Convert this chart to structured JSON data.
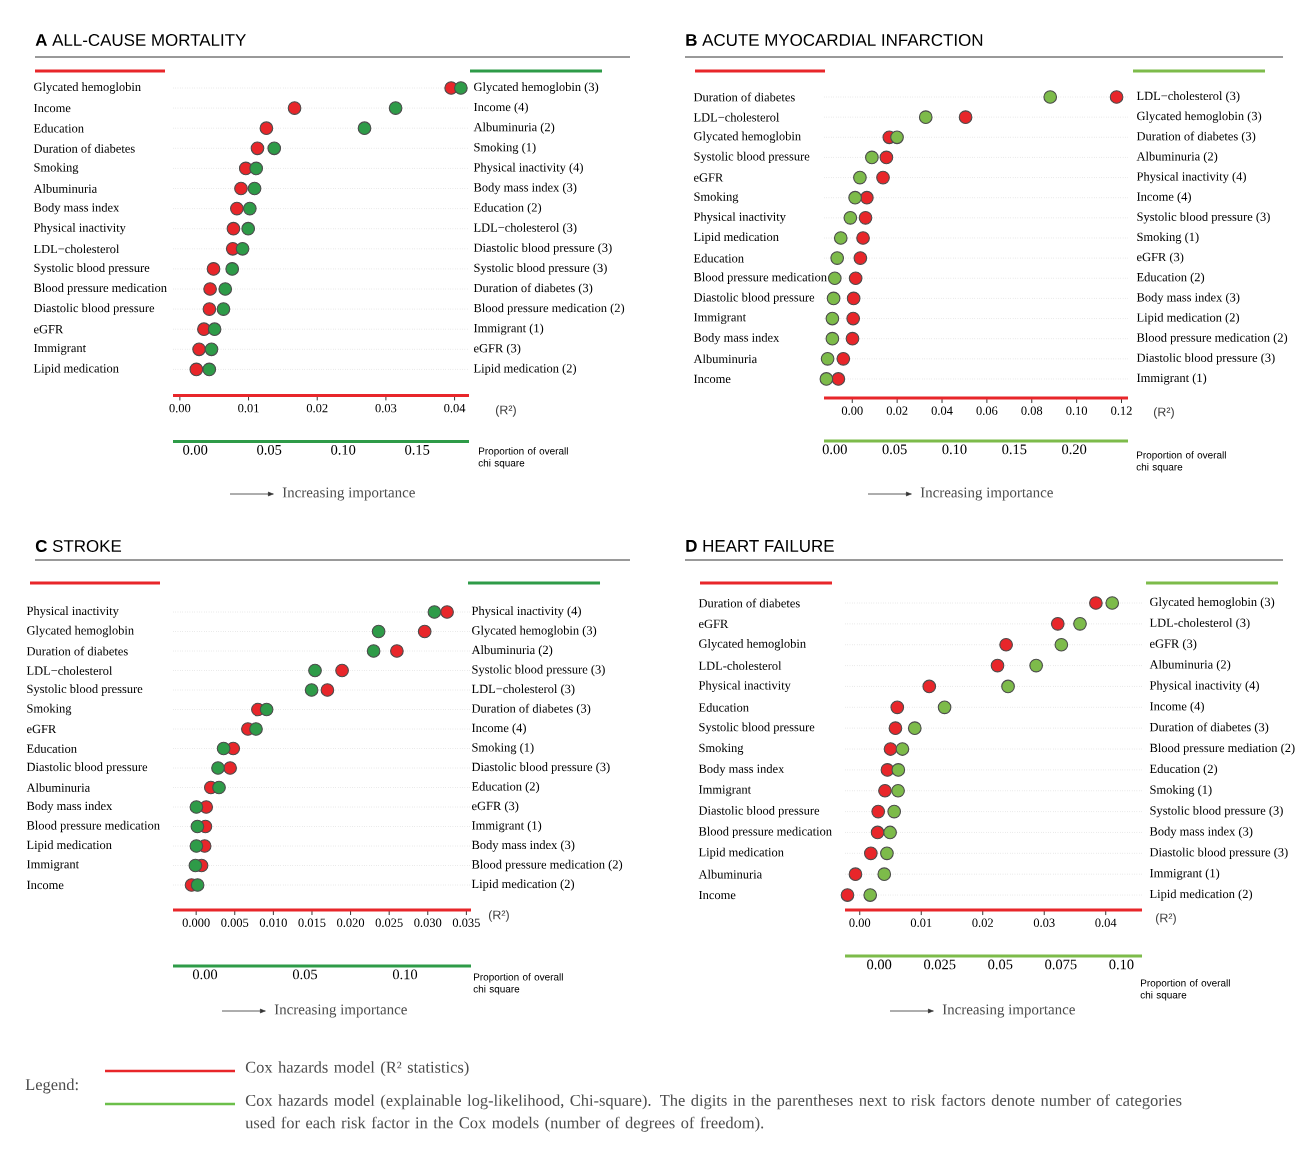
{
  "chart_data": [
    {
      "type": "scatter",
      "orientation": "horizontal",
      "title": "**A** ALL-CAUSE MORTALITY",
      "xlabel": "(R²)",
      "x2label": "Proportion of overall chi square",
      "annotations": [
        "Increasing importance"
      ],
      "marker": "circle",
      "grid": "y",
      "categories": [
        "Glycated hemoglobin",
        "Income",
        "Education",
        "Duration of diabetes",
        "Smoking",
        "Albuminuria",
        "Body mass index",
        "Physical inactivity",
        "LDL−cholesterol",
        "Systolic blood pressure",
        "Blood pressure medication",
        "Diastolic blood pressure",
        "eGFR",
        "Immigrant",
        "Lipid medication"
      ],
      "y2_categories": [
        "Glycated hemoglobin (3)",
        "Income (4)",
        "Albuminuria (2)",
        "Smoking (1)",
        "Physical inactivity (4)",
        "Body mass index (3)",
        "Education (2)",
        "LDL−cholesterol (3)",
        "Diastolic blood pressure (3)",
        "Systolic blood pressure (3)",
        "Duration of diabetes (3)",
        "Blood pressure medication (2)",
        "Immigrant (1)",
        "eGFR (3)",
        "Lipid medication (2)"
      ],
      "xlim": [
        -0.001,
        0.0421
      ],
      "xticks": [
        {
          "value": 0,
          "label": "0.00"
        },
        {
          "value": 0.01,
          "label": "0.01"
        },
        {
          "value": 0.02,
          "label": "0.02"
        },
        {
          "value": 0.03,
          "label": "0.03"
        },
        {
          "value": 0.04,
          "label": "0.04"
        }
      ],
      "x2lim": [
        -0.015,
        0.185
      ],
      "x2ticks": [
        {
          "value": 0,
          "label": "0.00"
        },
        {
          "value": 0.05,
          "label": "0.05"
        },
        {
          "value": 0.1,
          "label": "0.10"
        },
        {
          "value": 0.15,
          "label": "0.15"
        }
      ],
      "series": [
        {
          "color": "#e8262a",
          "values": [
            0.0395,
            0.0167,
            0.0126,
            0.0113,
            0.0096,
            0.0089,
            0.0083,
            0.0078,
            0.0077,
            0.0049,
            0.0044,
            0.0043,
            0.0035,
            0.0028,
            0.0024
          ]
        },
        {
          "color": "#2e9b48",
          "axis": "x2",
          "values": [
            0.1795,
            0.1354,
            0.1144,
            0.0534,
            0.0412,
            0.0401,
            0.0369,
            0.0358,
            0.032,
            0.025,
            0.0203,
            0.0191,
            0.0131,
            0.011,
            0.0095
          ]
        }
      ]
    },
    {
      "type": "scatter",
      "orientation": "horizontal",
      "title": "**B** ACUTE MYOCARDIAL INFARCTION",
      "xlabel": "(R²)",
      "x2label": "Proportion of overall chi square",
      "annotations": [
        "Increasing importance"
      ],
      "marker": "circle",
      "grid": "y",
      "categories": [
        "Duration of diabetes",
        "LDL−cholesterol",
        "Glycated hemoglobin",
        "Systolic blood pressure",
        "eGFR",
        "Smoking",
        "Physical inactivity",
        "Lipid medication",
        "Education",
        "Blood pressure medication",
        "Diastolic blood pressure",
        "Immigrant",
        "Body mass index",
        "Albuminuria",
        "Income"
      ],
      "y2_categories": [
        "LDL−cholesterol (3)",
        "Glycated hemoglobin (3)",
        "Duration of diabetes (3)",
        "Albuminuria (2)",
        "Physical inactivity (4)",
        "Income (4)",
        "Systolic blood pressure (3)",
        "Smoking (1)",
        "eGFR (3)",
        "Education (2)",
        "Body mass index (3)",
        "Lipid medication (2)",
        "Blood pressure medication (2)",
        "Diastolic blood pressure (3)",
        "Immigrant (1)"
      ],
      "xlim": [
        -0.0126,
        0.1229
      ],
      "xticks": [
        {
          "value": 0,
          "label": "0.00"
        },
        {
          "value": 0.02,
          "label": "0.02"
        },
        {
          "value": 0.04,
          "label": "0.04"
        },
        {
          "value": 0.06,
          "label": "0.06"
        },
        {
          "value": 0.08,
          "label": "0.08"
        },
        {
          "value": 0.1,
          "label": "0.10"
        },
        {
          "value": 0.12,
          "label": "0.12"
        }
      ],
      "x2lim": [
        -0.009,
        0.245
      ],
      "x2ticks": [
        {
          "value": 0,
          "label": "0.00"
        },
        {
          "value": 0.05,
          "label": "0.05"
        },
        {
          "value": 0.1,
          "label": "0.10"
        },
        {
          "value": 0.15,
          "label": "0.15"
        },
        {
          "value": 0.2,
          "label": "0.20"
        }
      ],
      "series": [
        {
          "color": "#e8262a",
          "values": [
            0.1178,
            0.0505,
            0.0165,
            0.0152,
            0.0137,
            0.0065,
            0.0059,
            0.0048,
            0.0036,
            0.0015,
            0.0006,
            0.0004,
            0.0001,
            -0.004,
            -0.0062
          ]
        },
        {
          "color": "#7dbb4a",
          "axis": "x2",
          "values": [
            0.18,
            0.076,
            0.052,
            0.031,
            0.021,
            0.017,
            0.013,
            0.005,
            0.002,
            0.0,
            -0.001,
            -0.002,
            -0.002,
            -0.006,
            -0.007
          ]
        }
      ]
    },
    {
      "type": "scatter",
      "orientation": "horizontal",
      "title": "**C** STROKE",
      "xlabel": "(R²)",
      "x2label": "Proportion of overall chi square",
      "annotations": [
        "Increasing importance"
      ],
      "marker": "circle",
      "grid": "y",
      "categories": [
        "Physical inactivity",
        "Glycated hemoglobin",
        "Duration of diabetes",
        "LDL−cholesterol",
        "Systolic blood pressure",
        "Smoking",
        "eGFR",
        "Education",
        "Diastolic blood pressure",
        "Albuminuria",
        "Body mass index",
        "Blood pressure medication",
        "Lipid medication",
        "Immigrant",
        "Income"
      ],
      "y2_categories": [
        "Physical inactivity (4)",
        "Glycated hemoglobin (3)",
        "Albuminuria (2)",
        "Systolic blood pressure (3)",
        "LDL−cholesterol (3)",
        "Duration of diabetes (3)",
        "Income (4)",
        "Smoking (1)",
        "Diastolic blood pressure (3)",
        "Education (2)",
        "eGFR (3)",
        "Immigrant (1)",
        "Body mass index (3)",
        "Blood pressure medication (2)",
        "Lipid medication (2)"
      ],
      "xlim": [
        -0.003,
        0.0356
      ],
      "xticks": [
        {
          "value": 0,
          "label": "0.000"
        },
        {
          "value": 0.005,
          "label": "0.005"
        },
        {
          "value": 0.01,
          "label": "0.010"
        },
        {
          "value": 0.015,
          "label": "0.015"
        },
        {
          "value": 0.02,
          "label": "0.020"
        },
        {
          "value": 0.025,
          "label": "0.025"
        },
        {
          "value": 0.03,
          "label": "0.030"
        },
        {
          "value": 0.035,
          "label": "0.035"
        }
      ],
      "x2lim": [
        -0.016,
        0.133
      ],
      "x2ticks": [
        {
          "value": 0,
          "label": "0.00"
        },
        {
          "value": 0.05,
          "label": "0.05"
        },
        {
          "value": 0.1,
          "label": "0.10"
        }
      ],
      "series": [
        {
          "color": "#e8262a",
          "values": [
            0.0325,
            0.0296,
            0.026,
            0.0189,
            0.017,
            0.008,
            0.0067,
            0.0048,
            0.0044,
            0.0019,
            0.0013,
            0.0012,
            0.0011,
            0.0007,
            -0.0006
          ]
        },
        {
          "color": "#2e9b48",
          "axis": "x2",
          "values": [
            0.1147,
            0.0868,
            0.0843,
            0.055,
            0.0533,
            0.0308,
            0.0255,
            0.0093,
            0.0065,
            0.007,
            -0.0043,
            -0.0038,
            -0.0043,
            -0.0048,
            -0.0037
          ]
        }
      ]
    },
    {
      "type": "scatter",
      "orientation": "horizontal",
      "title": "**D** HEART FAILURE",
      "xlabel": "(R²)",
      "x2label": "Proportion of overall chi square",
      "annotations": [
        "Increasing importance"
      ],
      "marker": "circle",
      "grid": "y",
      "categories": [
        "Duration of diabetes",
        "eGFR",
        "Glycated hemoglobin",
        "LDL-cholesterol",
        "Physical inactivity",
        "Education",
        "Systolic blood pressure",
        "Smoking",
        "Body mass index",
        "Immigrant",
        "Diastolic blood pressure",
        "Blood pressure medication",
        "Lipid medication",
        "Albuminuria",
        "Income"
      ],
      "y2_categories": [
        "Glycated hemoglobin (3)",
        "LDL-cholesterol (3)",
        "eGFR (3)",
        "Albuminuria (2)",
        "Physical inactivity (4)",
        "Income (4)",
        "Duration of diabetes (3)",
        "Blood pressure mediation (2)",
        "Education (2)",
        "Smoking (1)",
        "Systolic blood pressure (3)",
        "Body mass index (3)",
        "Diastolic blood pressure (3)",
        "Immigrant (1)",
        "Lipid medication (2)"
      ],
      "xlim": [
        -0.0024,
        0.0459
      ],
      "xticks": [
        {
          "value": 0,
          "label": "0.00"
        },
        {
          "value": 0.01,
          "label": "0.01"
        },
        {
          "value": 0.02,
          "label": "0.02"
        },
        {
          "value": 0.03,
          "label": "0.03"
        },
        {
          "value": 0.04,
          "label": "0.04"
        }
      ],
      "x2lim": [
        -0.0141,
        0.1085
      ],
      "x2ticks": [
        {
          "value": 0,
          "label": "0.00"
        },
        {
          "value": 0.025,
          "label": "0.025"
        },
        {
          "value": 0.05,
          "label": "0.05"
        },
        {
          "value": 0.075,
          "label": "0.075"
        },
        {
          "value": 0.1,
          "label": "0.10"
        }
      ],
      "series": [
        {
          "color": "#e8262a",
          "values": [
            0.0384,
            0.0322,
            0.0238,
            0.0224,
            0.0113,
            0.0061,
            0.0058,
            0.005,
            0.0045,
            0.0041,
            0.003,
            0.0029,
            0.0018,
            -0.0007,
            -0.002
          ]
        },
        {
          "color": "#7dbb4a",
          "axis": "x2",
          "values": [
            0.0962,
            0.0829,
            0.0752,
            0.0648,
            0.0532,
            0.027,
            0.0147,
            0.0096,
            0.0079,
            0.0078,
            0.0062,
            0.0045,
            0.0032,
            0.0021,
            -0.0037
          ]
        }
      ]
    },
    {
      "type": "other",
      "title": "Legend:",
      "colors": [
        "#e8262a",
        "#6cbf4a"
      ],
      "annotations": [
        "Cox hazards model (R² statistics)",
        "Cox hazards model (explainable log-likelihood, Chi-square). The digits in the parentheses next to risk factors denote number of categories used for each risk factor in the Cox models (number of degrees of freedom)."
      ]
    }
  ]
}
